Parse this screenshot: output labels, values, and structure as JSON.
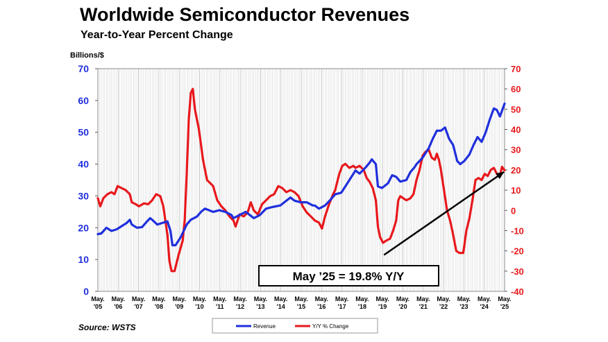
{
  "chart_data": {
    "type": "line",
    "title": "Worldwide Semiconductor Revenues",
    "subtitle": "Year-to-Year Percent Change",
    "units_label": "Billions/$",
    "source": "Source: WSTS",
    "callout": "May ’25 = 19.8% Y/Y",
    "x_tick_labels": [
      [
        "May.",
        "'05"
      ],
      [
        "May.",
        "'06"
      ],
      [
        "May.",
        "'07"
      ],
      [
        "May.",
        "'08"
      ],
      [
        "May.",
        "'09"
      ],
      [
        "May.",
        "'10"
      ],
      [
        "May.",
        "'11"
      ],
      [
        "May.",
        "'12"
      ],
      [
        "May.",
        "'13"
      ],
      [
        "May.",
        "'14"
      ],
      [
        "May.",
        "'15"
      ],
      [
        "May.",
        "'16"
      ],
      [
        "May.",
        "'17"
      ],
      [
        "May.",
        "'18"
      ],
      [
        "May.",
        "'19"
      ],
      [
        "May.",
        "'20"
      ],
      [
        "May.",
        "'21"
      ],
      [
        "May.",
        "'22"
      ],
      [
        "May.",
        "'23"
      ],
      [
        "May.",
        "'24"
      ],
      [
        "May.",
        "'25"
      ]
    ],
    "x_range": [
      2005.33,
      2025.33
    ],
    "y_left": {
      "range": [
        0,
        70
      ],
      "ticks": [
        0,
        10,
        20,
        30,
        40,
        50,
        60,
        70
      ]
    },
    "y_right": {
      "range": [
        -40,
        70
      ],
      "ticks": [
        -40,
        -30,
        -20,
        -10,
        0,
        10,
        20,
        30,
        40,
        50,
        60,
        70
      ]
    },
    "colors": {
      "revenue": "#1f2fdc",
      "yoy": "#e8181c",
      "grid": "#b8b8b8",
      "left_axis": "#1f2fdc",
      "right_axis": "#e8181c"
    },
    "series": [
      {
        "name": "Revenue",
        "axis": "left",
        "points": [
          [
            2005.33,
            18.0
          ],
          [
            2005.5,
            18.2
          ],
          [
            2005.75,
            20.0
          ],
          [
            2006.0,
            19.0
          ],
          [
            2006.25,
            19.5
          ],
          [
            2006.5,
            20.5
          ],
          [
            2006.75,
            21.5
          ],
          [
            2006.9,
            22.5
          ],
          [
            2007.0,
            21.0
          ],
          [
            2007.25,
            20.0
          ],
          [
            2007.5,
            20.2
          ],
          [
            2007.75,
            22.0
          ],
          [
            2007.9,
            23.0
          ],
          [
            2008.0,
            22.5
          ],
          [
            2008.25,
            21.0
          ],
          [
            2008.5,
            21.5
          ],
          [
            2008.75,
            22.0
          ],
          [
            2008.9,
            19.0
          ],
          [
            2009.0,
            14.5
          ],
          [
            2009.15,
            14.5
          ],
          [
            2009.4,
            17.0
          ],
          [
            2009.7,
            21.0
          ],
          [
            2009.9,
            22.5
          ],
          [
            2010.2,
            23.5
          ],
          [
            2010.4,
            25.0
          ],
          [
            2010.6,
            26.0
          ],
          [
            2010.8,
            25.5
          ],
          [
            2011.0,
            25.0
          ],
          [
            2011.3,
            25.5
          ],
          [
            2011.6,
            25.0
          ],
          [
            2011.9,
            24.0
          ],
          [
            2012.0,
            23.0
          ],
          [
            2012.3,
            24.0
          ],
          [
            2012.6,
            25.0
          ],
          [
            2012.9,
            23.5
          ],
          [
            2013.0,
            23.0
          ],
          [
            2013.3,
            24.0
          ],
          [
            2013.6,
            26.0
          ],
          [
            2013.9,
            26.5
          ],
          [
            2014.3,
            27.0
          ],
          [
            2014.6,
            28.5
          ],
          [
            2014.8,
            29.5
          ],
          [
            2015.0,
            28.5
          ],
          [
            2015.3,
            28.0
          ],
          [
            2015.6,
            28.0
          ],
          [
            2015.9,
            27.0
          ],
          [
            2016.0,
            27.0
          ],
          [
            2016.2,
            26.0
          ],
          [
            2016.5,
            27.0
          ],
          [
            2016.8,
            29.0
          ],
          [
            2017.0,
            30.5
          ],
          [
            2017.3,
            31.0
          ],
          [
            2017.6,
            34.0
          ],
          [
            2017.9,
            37.0
          ],
          [
            2018.0,
            38.0
          ],
          [
            2018.2,
            37.0
          ],
          [
            2018.5,
            39.0
          ],
          [
            2018.7,
            40.5
          ],
          [
            2018.8,
            41.5
          ],
          [
            2019.0,
            40.0
          ],
          [
            2019.1,
            33.0
          ],
          [
            2019.3,
            32.5
          ],
          [
            2019.6,
            34.0
          ],
          [
            2019.8,
            36.5
          ],
          [
            2020.0,
            36.0
          ],
          [
            2020.2,
            34.5
          ],
          [
            2020.5,
            35.0
          ],
          [
            2020.7,
            37.5
          ],
          [
            2020.9,
            39.0
          ],
          [
            2021.0,
            40.0
          ],
          [
            2021.3,
            42.0
          ],
          [
            2021.6,
            45.0
          ],
          [
            2021.8,
            48.0
          ],
          [
            2022.0,
            50.5
          ],
          [
            2022.2,
            50.5
          ],
          [
            2022.4,
            51.5
          ],
          [
            2022.6,
            48.0
          ],
          [
            2022.8,
            46.0
          ],
          [
            2023.0,
            41.0
          ],
          [
            2023.15,
            40.0
          ],
          [
            2023.35,
            41.0
          ],
          [
            2023.6,
            43.0
          ],
          [
            2023.8,
            46.0
          ],
          [
            2024.0,
            48.5
          ],
          [
            2024.2,
            47.0
          ],
          [
            2024.4,
            50.0
          ],
          [
            2024.6,
            54.0
          ],
          [
            2024.8,
            57.5
          ],
          [
            2024.95,
            57.0
          ],
          [
            2025.1,
            55.0
          ],
          [
            2025.33,
            59.0
          ]
        ]
      },
      {
        "name": "Y/Y % Change",
        "axis": "right",
        "points": [
          [
            2005.33,
            6.0
          ],
          [
            2005.45,
            2.0
          ],
          [
            2005.6,
            6.0
          ],
          [
            2005.8,
            8.0
          ],
          [
            2006.0,
            9.0
          ],
          [
            2006.15,
            8.0
          ],
          [
            2006.3,
            12.0
          ],
          [
            2006.5,
            11.0
          ],
          [
            2006.7,
            10.0
          ],
          [
            2006.9,
            8.0
          ],
          [
            2007.0,
            4.0
          ],
          [
            2007.2,
            3.0
          ],
          [
            2007.35,
            2.0
          ],
          [
            2007.6,
            3.5
          ],
          [
            2007.8,
            3.0
          ],
          [
            2008.0,
            5.0
          ],
          [
            2008.2,
            8.0
          ],
          [
            2008.4,
            7.0
          ],
          [
            2008.55,
            2.0
          ],
          [
            2008.75,
            -12.0
          ],
          [
            2008.85,
            -25.0
          ],
          [
            2008.95,
            -30.0
          ],
          [
            2009.1,
            -30.0
          ],
          [
            2009.3,
            -22.0
          ],
          [
            2009.5,
            -15.0
          ],
          [
            2009.6,
            -5.0
          ],
          [
            2009.7,
            18.0
          ],
          [
            2009.8,
            45.0
          ],
          [
            2009.9,
            58.0
          ],
          [
            2010.0,
            60.0
          ],
          [
            2010.1,
            50.0
          ],
          [
            2010.3,
            40.0
          ],
          [
            2010.5,
            25.0
          ],
          [
            2010.7,
            15.0
          ],
          [
            2010.9,
            13.0
          ],
          [
            2011.0,
            12.0
          ],
          [
            2011.2,
            5.0
          ],
          [
            2011.4,
            2.0
          ],
          [
            2011.6,
            0.0
          ],
          [
            2011.8,
            -3.0
          ],
          [
            2012.0,
            -5.0
          ],
          [
            2012.1,
            -8.0
          ],
          [
            2012.3,
            -2.0
          ],
          [
            2012.5,
            -3.0
          ],
          [
            2012.7,
            -1.0
          ],
          [
            2012.85,
            4.0
          ],
          [
            2013.0,
            0.0
          ],
          [
            2013.2,
            -2.0
          ],
          [
            2013.4,
            3.0
          ],
          [
            2013.6,
            5.0
          ],
          [
            2013.8,
            7.0
          ],
          [
            2014.0,
            8.0
          ],
          [
            2014.2,
            12.0
          ],
          [
            2014.4,
            11.0
          ],
          [
            2014.6,
            9.0
          ],
          [
            2014.8,
            10.0
          ],
          [
            2015.0,
            9.0
          ],
          [
            2015.2,
            7.0
          ],
          [
            2015.4,
            2.0
          ],
          [
            2015.6,
            -1.0
          ],
          [
            2015.8,
            -3.0
          ],
          [
            2016.0,
            -5.0
          ],
          [
            2016.2,
            -6.0
          ],
          [
            2016.35,
            -9.0
          ],
          [
            2016.5,
            -3.0
          ],
          [
            2016.7,
            3.0
          ],
          [
            2016.9,
            8.0
          ],
          [
            2017.0,
            10.0
          ],
          [
            2017.2,
            18.0
          ],
          [
            2017.35,
            22.0
          ],
          [
            2017.5,
            23.0
          ],
          [
            2017.7,
            21.0
          ],
          [
            2017.9,
            22.0
          ],
          [
            2018.0,
            21.0
          ],
          [
            2018.2,
            22.0
          ],
          [
            2018.4,
            20.0
          ],
          [
            2018.55,
            16.0
          ],
          [
            2018.7,
            14.0
          ],
          [
            2018.85,
            11.0
          ],
          [
            2019.0,
            5.0
          ],
          [
            2019.1,
            -8.0
          ],
          [
            2019.2,
            -13.0
          ],
          [
            2019.35,
            -16.0
          ],
          [
            2019.5,
            -15.0
          ],
          [
            2019.7,
            -14.0
          ],
          [
            2019.85,
            -10.0
          ],
          [
            2020.0,
            -5.0
          ],
          [
            2020.1,
            5.0
          ],
          [
            2020.2,
            7.0
          ],
          [
            2020.35,
            6.0
          ],
          [
            2020.5,
            5.0
          ],
          [
            2020.7,
            6.0
          ],
          [
            2020.85,
            8.0
          ],
          [
            2021.0,
            15.0
          ],
          [
            2021.15,
            20.0
          ],
          [
            2021.3,
            27.0
          ],
          [
            2021.45,
            29.0
          ],
          [
            2021.6,
            30.0
          ],
          [
            2021.75,
            26.0
          ],
          [
            2021.9,
            25.0
          ],
          [
            2022.0,
            28.0
          ],
          [
            2022.1,
            25.0
          ],
          [
            2022.2,
            20.0
          ],
          [
            2022.35,
            10.0
          ],
          [
            2022.5,
            0.0
          ],
          [
            2022.65,
            -5.0
          ],
          [
            2022.8,
            -12.0
          ],
          [
            2022.95,
            -20.0
          ],
          [
            2023.1,
            -21.0
          ],
          [
            2023.3,
            -21.0
          ],
          [
            2023.45,
            -10.0
          ],
          [
            2023.6,
            -4.0
          ],
          [
            2023.75,
            5.0
          ],
          [
            2023.9,
            15.0
          ],
          [
            2024.05,
            16.0
          ],
          [
            2024.2,
            15.0
          ],
          [
            2024.35,
            18.0
          ],
          [
            2024.5,
            17.0
          ],
          [
            2024.65,
            20.0
          ],
          [
            2024.8,
            21.0
          ],
          [
            2024.95,
            18.0
          ],
          [
            2025.1,
            17.0
          ],
          [
            2025.2,
            21.5
          ],
          [
            2025.33,
            19.8
          ]
        ]
      }
    ],
    "arrow": {
      "from": [
        2019.4,
        -22.0
      ],
      "to": [
        2025.3,
        19.0
      ]
    }
  }
}
